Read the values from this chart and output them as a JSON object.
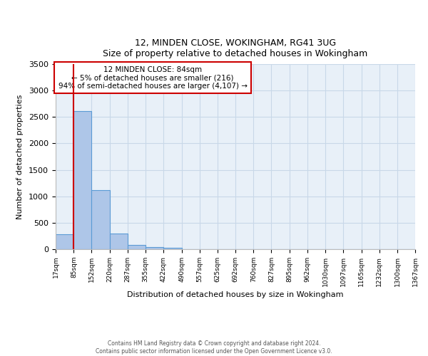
{
  "title": "12, MINDEN CLOSE, WOKINGHAM, RG41 3UG",
  "subtitle": "Size of property relative to detached houses in Wokingham",
  "xlabel": "Distribution of detached houses by size in Wokingham",
  "ylabel": "Number of detached properties",
  "bar_edges": [
    17,
    85,
    152,
    220,
    287,
    355,
    422,
    490,
    557,
    625,
    692,
    760,
    827,
    895,
    962,
    1030,
    1097,
    1165,
    1232,
    1300,
    1367
  ],
  "bar_heights": [
    280,
    2610,
    1120,
    290,
    85,
    45,
    30,
    0,
    0,
    0,
    0,
    0,
    0,
    0,
    0,
    0,
    0,
    0,
    0,
    0
  ],
  "bar_color": "#aec6e8",
  "bar_edge_color": "#5b9bd5",
  "property_line_x": 85,
  "property_line_color": "#cc0000",
  "annotation_title": "12 MINDEN CLOSE: 84sqm",
  "annotation_line1": "← 5% of detached houses are smaller (216)",
  "annotation_line2": "94% of semi-detached houses are larger (4,107) →",
  "annotation_box_color": "#ffffff",
  "annotation_box_edge": "#cc0000",
  "ylim": [
    0,
    3500
  ],
  "yticks": [
    0,
    500,
    1000,
    1500,
    2000,
    2500,
    3000,
    3500
  ],
  "tick_labels": [
    "17sqm",
    "85sqm",
    "152sqm",
    "220sqm",
    "287sqm",
    "355sqm",
    "422sqm",
    "490sqm",
    "557sqm",
    "625sqm",
    "692sqm",
    "760sqm",
    "827sqm",
    "895sqm",
    "962sqm",
    "1030sqm",
    "1097sqm",
    "1165sqm",
    "1232sqm",
    "1300sqm",
    "1367sqm"
  ],
  "footer1": "Contains HM Land Registry data © Crown copyright and database right 2024.",
  "footer2": "Contains public sector information licensed under the Open Government Licence v3.0.",
  "bg_color": "#ffffff",
  "plot_bg_color": "#e8f0f8",
  "grid_color": "#c8d8e8",
  "figsize": [
    6.0,
    5.0
  ],
  "dpi": 100
}
